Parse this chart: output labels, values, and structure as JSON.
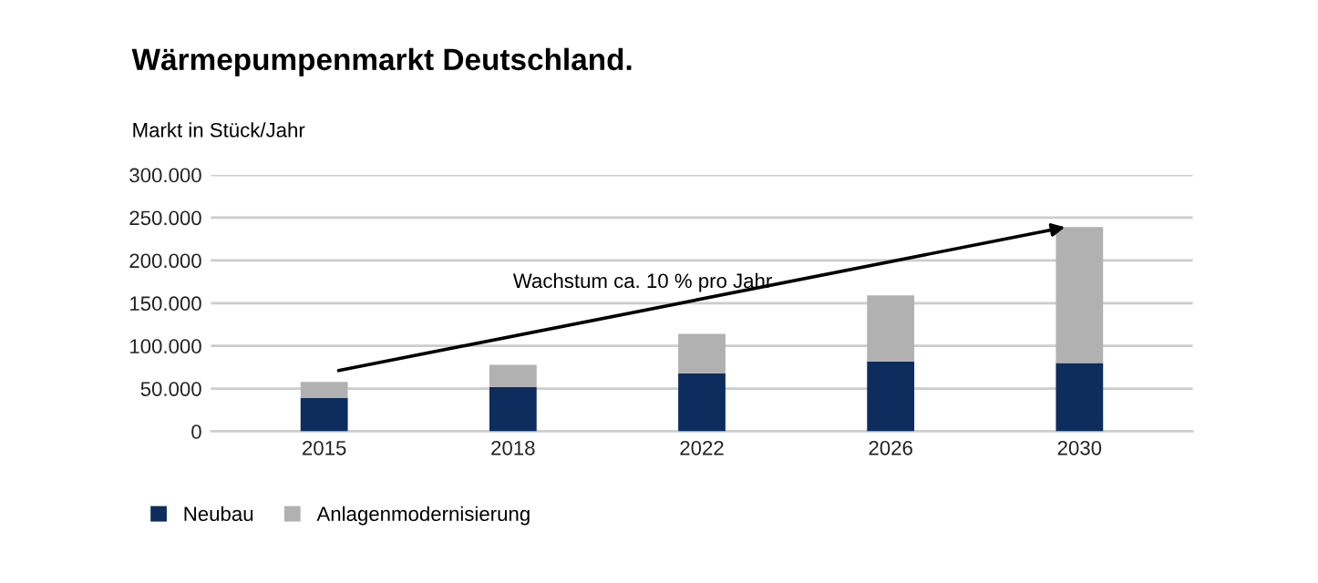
{
  "chart_data": {
    "type": "bar",
    "title": "Wärmepumpenmarkt Deutschland.",
    "ylabel": "Markt in Stück/Jahr",
    "categories": [
      "2015",
      "2018",
      "2022",
      "2026",
      "2030"
    ],
    "stacked": true,
    "series": [
      {
        "name": "Neubau",
        "color": "#0d2d5e",
        "values": [
          39000,
          52000,
          68000,
          82000,
          80000
        ]
      },
      {
        "name": "Anlagenmodernisierung",
        "color": "#b1b1b1",
        "values": [
          19000,
          26000,
          46000,
          77000,
          159000
        ]
      }
    ],
    "ylim": [
      0,
      300000
    ],
    "yticks": [
      0,
      {
        "value": 50000,
        "label": "50.000"
      },
      {
        "value": 100000,
        "label": "100.000"
      },
      {
        "value": 150000,
        "label": "150.000"
      },
      {
        "value": 200000,
        "label": "200.000"
      },
      {
        "value": 250000,
        "label": "250.000"
      },
      {
        "value": 300000,
        "label": "300.000"
      }
    ],
    "grid": "y",
    "legend": "bottom left",
    "annotations": [
      "Wachstum ca. 10 % pro Jahr"
    ]
  }
}
